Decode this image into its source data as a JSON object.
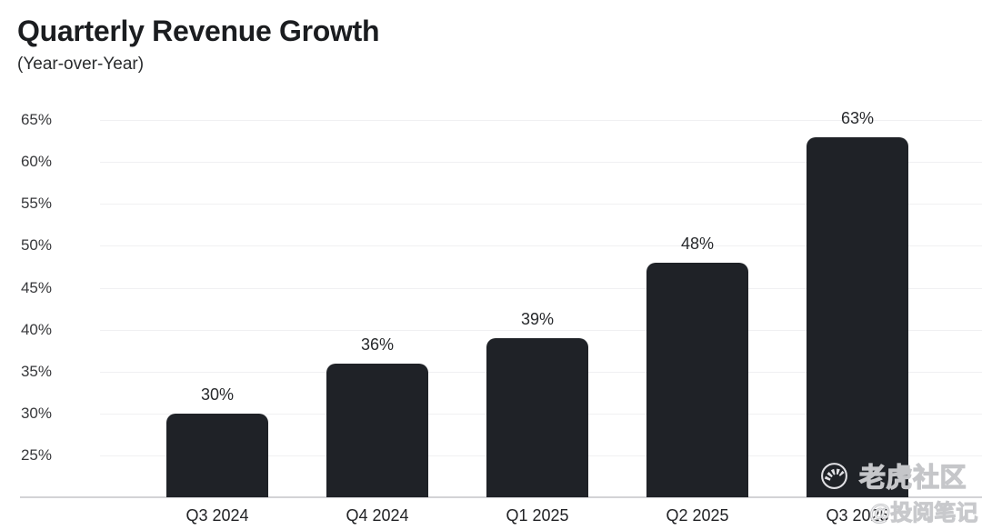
{
  "header": {
    "title": "Quarterly Revenue Growth",
    "subtitle": "(Year-over-Year)"
  },
  "chart_data": {
    "type": "bar",
    "title": "Quarterly Revenue Growth",
    "subtitle": "(Year-over-Year)",
    "categories": [
      "Q3 2024",
      "Q4 2024",
      "Q1 2025",
      "Q2 2025",
      "Q3 2025"
    ],
    "values": [
      30,
      36,
      39,
      48,
      63
    ],
    "value_labels": [
      "30%",
      "36%",
      "39%",
      "48%",
      "63%"
    ],
    "unit": "%",
    "xlabel": "",
    "ylabel": "",
    "y_ticks": [
      25,
      30,
      35,
      40,
      45,
      50,
      55,
      60,
      65
    ],
    "y_tick_labels": [
      "25%",
      "30%",
      "35%",
      "40%",
      "45%",
      "50%",
      "55%",
      "60%",
      "65%"
    ],
    "ylim": [
      20,
      67.5
    ],
    "grid": "horizontal-light",
    "legend_position": "none",
    "bar_color": "#1f2227",
    "gridline_color": "#f0f0f2",
    "axis_line_color": "#d3d3d6",
    "background_color": "#ffffff"
  },
  "watermark": {
    "brand": "老虎社区",
    "handle": "@投阅笔记",
    "logo_icon": "tiger-circle-logo"
  }
}
